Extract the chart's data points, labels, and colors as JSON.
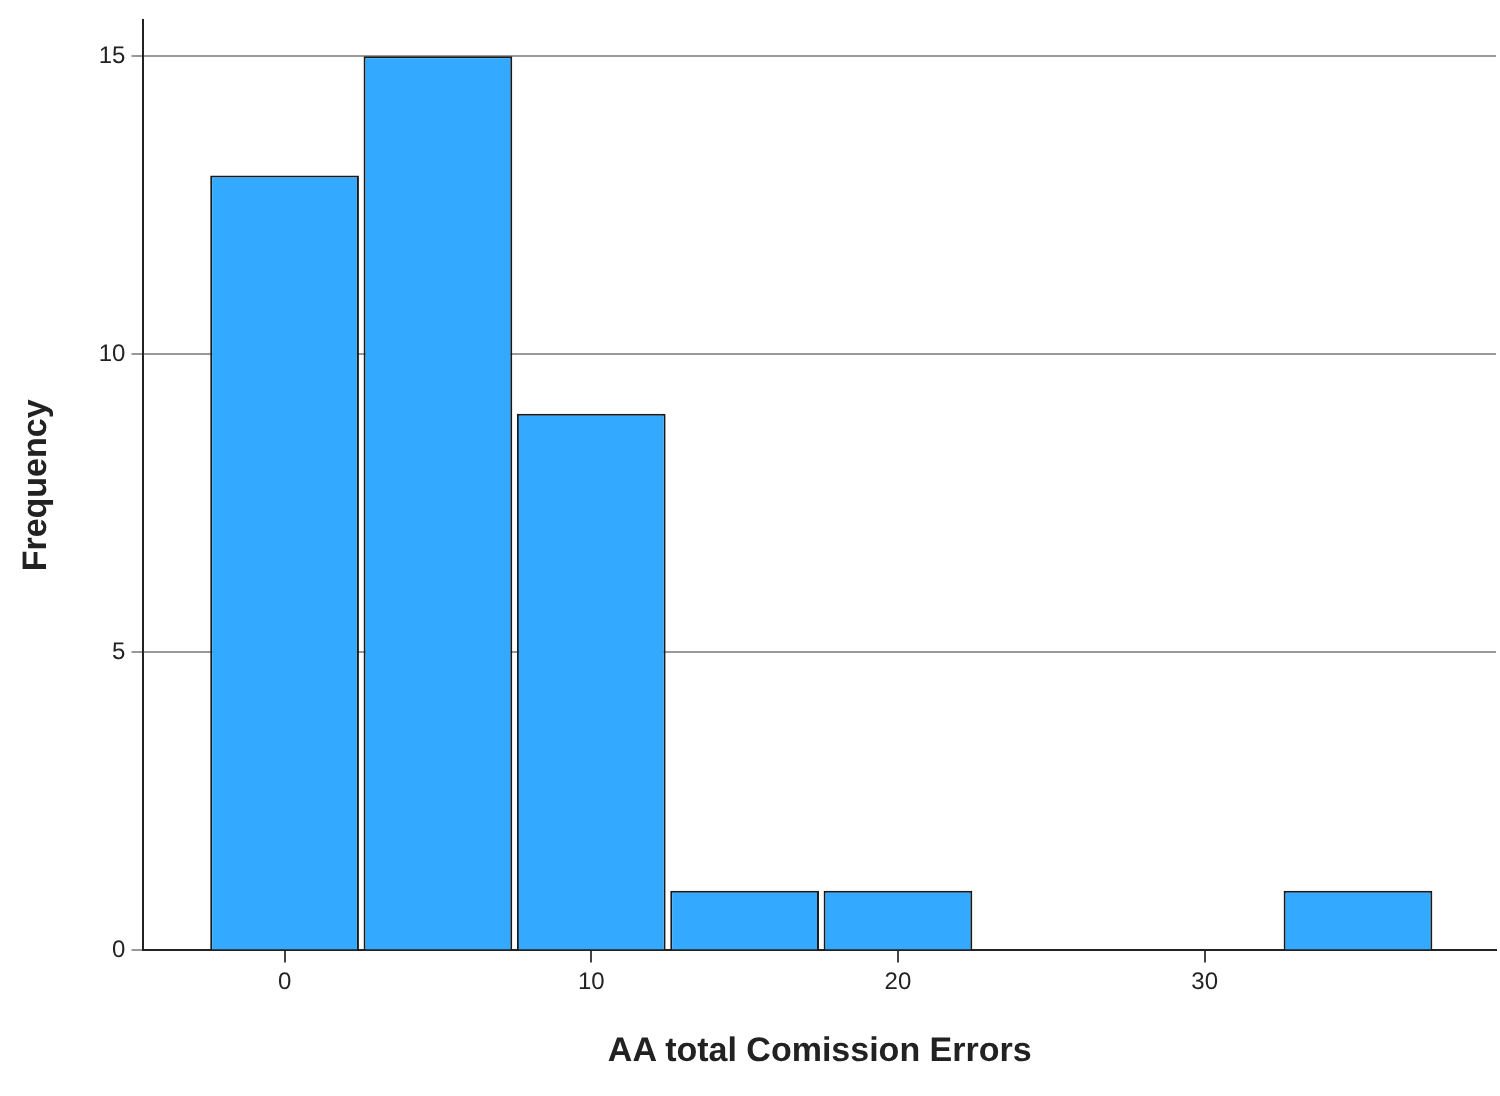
{
  "chart_data": {
    "type": "histogram",
    "xlabel": "AA total Comission Errors",
    "ylabel": "Frequency",
    "bins": [
      -2.5,
      2.5,
      7.5,
      12.5,
      17.5,
      22.5,
      27.5,
      32.5,
      37.5
    ],
    "values": [
      13,
      15,
      9,
      1,
      1,
      0,
      0,
      1
    ],
    "color": "#33aaff",
    "xlim": [
      -4.6,
      39.5
    ],
    "xticks": [
      0,
      10,
      20,
      30
    ],
    "ylim": [
      0,
      15.6
    ],
    "yticks": [
      0,
      5,
      10,
      15
    ],
    "grid": "y",
    "legend": false
  }
}
